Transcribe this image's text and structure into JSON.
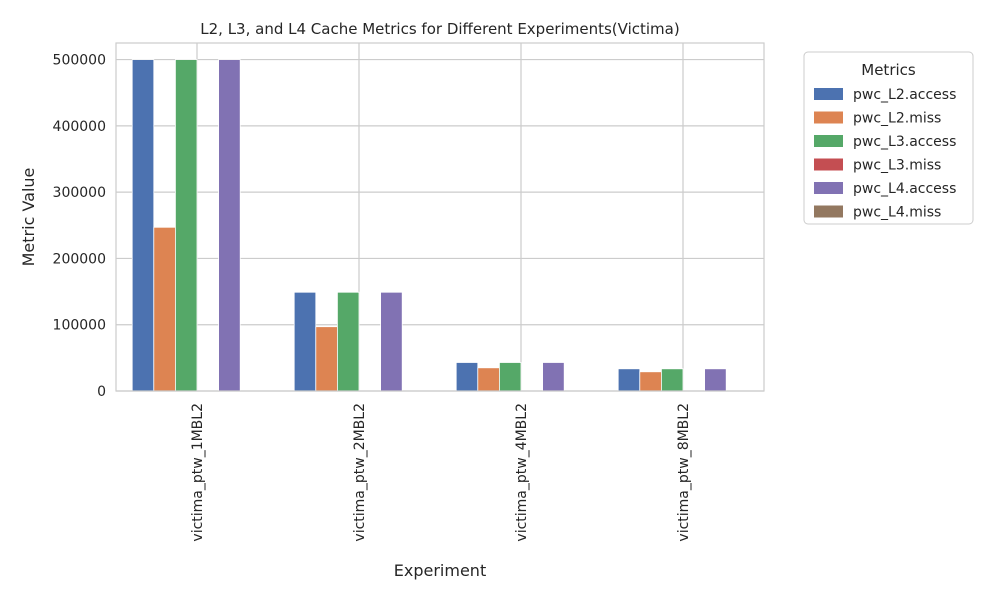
{
  "chart_data": {
    "type": "bar",
    "title": "L2, L3, and L4 Cache Metrics for Different Experiments(Victima)",
    "xlabel": "Experiment",
    "ylabel": "Metric Value",
    "categories": [
      "victima_ptw_1MBL2",
      "victima_ptw_2MBL2",
      "victima_ptw_4MBL2",
      "victima_ptw_8MBL2"
    ],
    "ylim": [
      0,
      525000
    ],
    "yticks": [
      0,
      100000,
      200000,
      300000,
      400000,
      500000
    ],
    "yticklabels": [
      "0",
      "100000",
      "200000",
      "300000",
      "400000",
      "500000"
    ],
    "grid": true,
    "legend": {
      "title": "Metrics",
      "placement": "outside-top-right"
    },
    "series": [
      {
        "name": "pwc_L2.access",
        "color": "#4c72b0",
        "values": [
          500000,
          149000,
          43000,
          33500
        ]
      },
      {
        "name": "pwc_L2.miss",
        "color": "#dd8452",
        "values": [
          247000,
          97000,
          35000,
          29000
        ]
      },
      {
        "name": "pwc_L3.access",
        "color": "#55a868",
        "values": [
          500000,
          149000,
          43000,
          33500
        ]
      },
      {
        "name": "pwc_L3.miss",
        "color": "#c44e52",
        "values": [
          0,
          0,
          0,
          0
        ]
      },
      {
        "name": "pwc_L4.access",
        "color": "#8172b3",
        "values": [
          500000,
          149000,
          43000,
          33500
        ]
      },
      {
        "name": "pwc_L4.miss",
        "color": "#937860",
        "values": [
          0,
          0,
          0,
          0
        ]
      }
    ]
  }
}
